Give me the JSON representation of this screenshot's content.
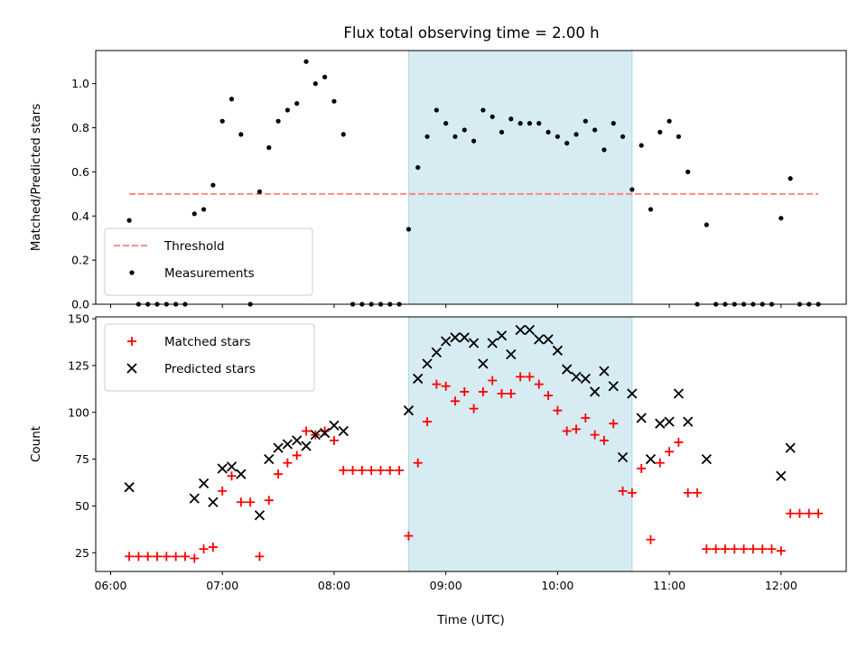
{
  "chart_data": [
    {
      "type": "scatter",
      "title": "Flux total observing time = 2.00 h",
      "xlabel": "",
      "ylabel": "Matched/Predicted stars",
      "xlim": [
        "05:52",
        "12:35"
      ],
      "ylim": [
        0,
        1.15
      ],
      "yticks": [
        "0.0",
        "0.2",
        "0.4",
        "0.6",
        "0.8",
        "1.0"
      ],
      "grid": false,
      "legend": "lower-left",
      "shaded_span": [
        "08:40",
        "10:40"
      ],
      "shade_color": "#add8e6",
      "threshold": {
        "name": "Threshold",
        "y": 0.5,
        "x": [
          "06:10",
          "12:20"
        ],
        "color": "#ff7f7f",
        "style": "dashed"
      },
      "series": [
        {
          "name": "Measurements",
          "color": "#000000",
          "marker": "dot",
          "points": [
            [
              "06:10",
              0.38
            ],
            [
              "06:15",
              0.0
            ],
            [
              "06:20",
              0.0
            ],
            [
              "06:25",
              0.0
            ],
            [
              "06:30",
              0.0
            ],
            [
              "06:35",
              0.0
            ],
            [
              "06:40",
              0.0
            ],
            [
              "06:45",
              0.41
            ],
            [
              "06:50",
              0.43
            ],
            [
              "06:55",
              0.54
            ],
            [
              "07:00",
              0.83
            ],
            [
              "07:05",
              0.93
            ],
            [
              "07:10",
              0.77
            ],
            [
              "07:15",
              0.0
            ],
            [
              "07:20",
              0.51
            ],
            [
              "07:25",
              0.71
            ],
            [
              "07:30",
              0.83
            ],
            [
              "07:35",
              0.88
            ],
            [
              "07:40",
              0.91
            ],
            [
              "07:45",
              1.1
            ],
            [
              "07:50",
              1.0
            ],
            [
              "07:55",
              1.03
            ],
            [
              "08:00",
              0.92
            ],
            [
              "08:05",
              0.77
            ],
            [
              "08:10",
              0.0
            ],
            [
              "08:15",
              0.0
            ],
            [
              "08:20",
              0.0
            ],
            [
              "08:25",
              0.0
            ],
            [
              "08:30",
              0.0
            ],
            [
              "08:35",
              0.0
            ],
            [
              "08:40",
              0.34
            ],
            [
              "08:45",
              0.62
            ],
            [
              "08:50",
              0.76
            ],
            [
              "08:55",
              0.88
            ],
            [
              "09:00",
              0.82
            ],
            [
              "09:05",
              0.76
            ],
            [
              "09:10",
              0.79
            ],
            [
              "09:15",
              0.74
            ],
            [
              "09:20",
              0.88
            ],
            [
              "09:25",
              0.85
            ],
            [
              "09:30",
              0.78
            ],
            [
              "09:35",
              0.84
            ],
            [
              "09:40",
              0.82
            ],
            [
              "09:45",
              0.82
            ],
            [
              "09:50",
              0.82
            ],
            [
              "09:55",
              0.78
            ],
            [
              "10:00",
              0.76
            ],
            [
              "10:05",
              0.73
            ],
            [
              "10:10",
              0.77
            ],
            [
              "10:15",
              0.83
            ],
            [
              "10:20",
              0.79
            ],
            [
              "10:25",
              0.7
            ],
            [
              "10:30",
              0.82
            ],
            [
              "10:35",
              0.76
            ],
            [
              "10:40",
              0.52
            ],
            [
              "10:45",
              0.72
            ],
            [
              "10:50",
              0.43
            ],
            [
              "10:55",
              0.78
            ],
            [
              "11:00",
              0.83
            ],
            [
              "11:05",
              0.76
            ],
            [
              "11:10",
              0.6
            ],
            [
              "11:15",
              0.0
            ],
            [
              "11:20",
              0.36
            ],
            [
              "11:25",
              0.0
            ],
            [
              "11:30",
              0.0
            ],
            [
              "11:35",
              0.0
            ],
            [
              "11:40",
              0.0
            ],
            [
              "11:45",
              0.0
            ],
            [
              "11:50",
              0.0
            ],
            [
              "11:55",
              0.0
            ],
            [
              "12:00",
              0.39
            ],
            [
              "12:05",
              0.57
            ],
            [
              "12:10",
              0.0
            ],
            [
              "12:15",
              0.0
            ],
            [
              "12:20",
              0.0
            ]
          ]
        }
      ]
    },
    {
      "type": "scatter",
      "title": "",
      "xlabel": "Time (UTC)",
      "ylabel": "Count",
      "xlim": [
        "05:52",
        "12:35"
      ],
      "ylim": [
        15,
        151
      ],
      "yticks": [
        "25",
        "50",
        "75",
        "100",
        "125",
        "150"
      ],
      "xticks": [
        "06:00",
        "07:00",
        "08:00",
        "09:00",
        "10:00",
        "11:00",
        "12:00"
      ],
      "grid": false,
      "legend": "upper-left",
      "shaded_span": [
        "08:40",
        "10:40"
      ],
      "shade_color": "#add8e6",
      "series": [
        {
          "name": "Matched stars",
          "color": "#ff0000",
          "marker": "plus",
          "points": [
            [
              "06:10",
              23
            ],
            [
              "06:15",
              23
            ],
            [
              "06:20",
              23
            ],
            [
              "06:25",
              23
            ],
            [
              "06:30",
              23
            ],
            [
              "06:35",
              23
            ],
            [
              "06:40",
              23
            ],
            [
              "06:45",
              22
            ],
            [
              "06:50",
              27
            ],
            [
              "06:55",
              28
            ],
            [
              "07:00",
              58
            ],
            [
              "07:05",
              66
            ],
            [
              "07:10",
              52
            ],
            [
              "07:15",
              52
            ],
            [
              "07:20",
              23
            ],
            [
              "07:25",
              53
            ],
            [
              "07:30",
              67
            ],
            [
              "07:35",
              73
            ],
            [
              "07:40",
              77
            ],
            [
              "07:45",
              90
            ],
            [
              "07:50",
              88
            ],
            [
              "07:55",
              90
            ],
            [
              "08:00",
              85
            ],
            [
              "08:05",
              69
            ],
            [
              "08:10",
              69
            ],
            [
              "08:15",
              69
            ],
            [
              "08:20",
              69
            ],
            [
              "08:25",
              69
            ],
            [
              "08:30",
              69
            ],
            [
              "08:35",
              69
            ],
            [
              "08:40",
              34
            ],
            [
              "08:45",
              73
            ],
            [
              "08:50",
              95
            ],
            [
              "08:55",
              115
            ],
            [
              "09:00",
              114
            ],
            [
              "09:05",
              106
            ],
            [
              "09:10",
              111
            ],
            [
              "09:15",
              102
            ],
            [
              "09:20",
              111
            ],
            [
              "09:25",
              117
            ],
            [
              "09:30",
              110
            ],
            [
              "09:35",
              110
            ],
            [
              "09:40",
              119
            ],
            [
              "09:45",
              119
            ],
            [
              "09:50",
              115
            ],
            [
              "09:55",
              109
            ],
            [
              "10:00",
              101
            ],
            [
              "10:05",
              90
            ],
            [
              "10:10",
              91
            ],
            [
              "10:15",
              97
            ],
            [
              "10:20",
              88
            ],
            [
              "10:25",
              85
            ],
            [
              "10:30",
              94
            ],
            [
              "10:35",
              58
            ],
            [
              "10:40",
              57
            ],
            [
              "10:45",
              70
            ],
            [
              "10:50",
              32
            ],
            [
              "10:55",
              73
            ],
            [
              "11:00",
              79
            ],
            [
              "11:05",
              84
            ],
            [
              "11:10",
              57
            ],
            [
              "11:15",
              57
            ],
            [
              "11:20",
              27
            ],
            [
              "11:25",
              27
            ],
            [
              "11:30",
              27
            ],
            [
              "11:35",
              27
            ],
            [
              "11:40",
              27
            ],
            [
              "11:45",
              27
            ],
            [
              "11:50",
              27
            ],
            [
              "11:55",
              27
            ],
            [
              "12:00",
              26
            ],
            [
              "12:05",
              46
            ],
            [
              "12:10",
              46
            ],
            [
              "12:15",
              46
            ],
            [
              "12:20",
              46
            ]
          ]
        },
        {
          "name": "Predicted stars",
          "color": "#000000",
          "marker": "x",
          "points": [
            [
              "06:10",
              60
            ],
            [
              "06:45",
              54
            ],
            [
              "06:50",
              62
            ],
            [
              "06:55",
              52
            ],
            [
              "07:00",
              70
            ],
            [
              "07:05",
              71
            ],
            [
              "07:10",
              67
            ],
            [
              "07:20",
              45
            ],
            [
              "07:25",
              75
            ],
            [
              "07:30",
              81
            ],
            [
              "07:35",
              83
            ],
            [
              "07:40",
              85
            ],
            [
              "07:45",
              82
            ],
            [
              "07:50",
              88
            ],
            [
              "07:55",
              89
            ],
            [
              "08:00",
              93
            ],
            [
              "08:05",
              90
            ],
            [
              "08:40",
              101
            ],
            [
              "08:45",
              118
            ],
            [
              "08:50",
              126
            ],
            [
              "08:55",
              132
            ],
            [
              "09:00",
              138
            ],
            [
              "09:05",
              140
            ],
            [
              "09:10",
              140
            ],
            [
              "09:15",
              137
            ],
            [
              "09:20",
              126
            ],
            [
              "09:25",
              137
            ],
            [
              "09:30",
              141
            ],
            [
              "09:35",
              131
            ],
            [
              "09:40",
              144
            ],
            [
              "09:45",
              144
            ],
            [
              "09:50",
              139
            ],
            [
              "09:55",
              139
            ],
            [
              "10:00",
              133
            ],
            [
              "10:05",
              123
            ],
            [
              "10:10",
              119
            ],
            [
              "10:15",
              118
            ],
            [
              "10:20",
              111
            ],
            [
              "10:25",
              122
            ],
            [
              "10:30",
              114
            ],
            [
              "10:35",
              76
            ],
            [
              "10:40",
              110
            ],
            [
              "10:45",
              97
            ],
            [
              "10:50",
              75
            ],
            [
              "10:55",
              94
            ],
            [
              "11:00",
              95
            ],
            [
              "11:05",
              110
            ],
            [
              "11:10",
              95
            ],
            [
              "11:20",
              75
            ],
            [
              "12:00",
              66
            ],
            [
              "12:05",
              81
            ]
          ]
        }
      ]
    }
  ]
}
